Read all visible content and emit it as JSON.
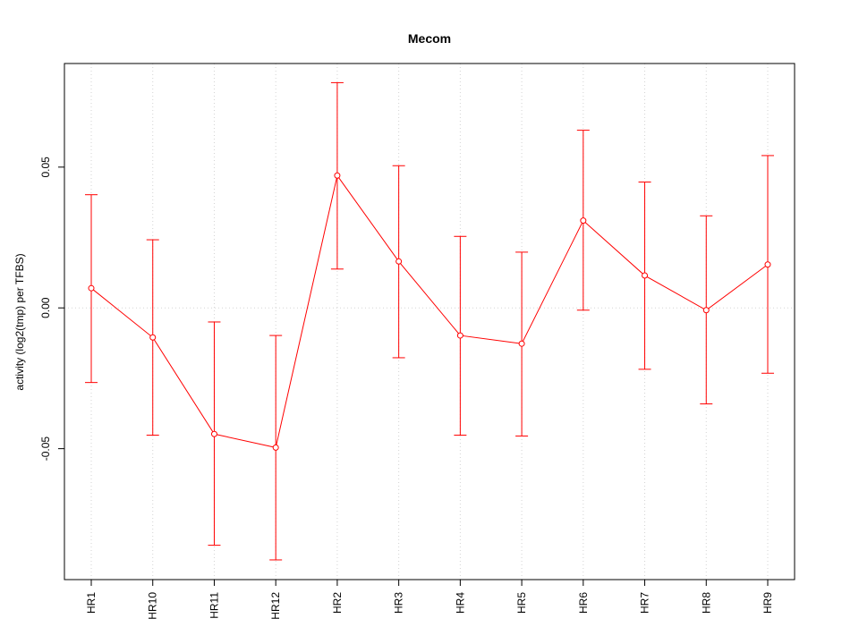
{
  "chart_data": {
    "type": "line",
    "title": "Mecom",
    "xlabel": "",
    "ylabel": "activity (log2(tmp) per TFBS)",
    "categories": [
      "HR1",
      "HR10",
      "HR11",
      "HR12",
      "HR2",
      "HR3",
      "HR4",
      "HR5",
      "HR6",
      "HR7",
      "HR8",
      "HR9"
    ],
    "series": [
      {
        "values": [
          0.007,
          -0.0105,
          -0.0448,
          -0.0496,
          0.047,
          0.0165,
          -0.0098,
          -0.0127,
          0.031,
          0.0115,
          -0.0008,
          0.0154
        ],
        "lower": [
          -0.0265,
          -0.0452,
          -0.0843,
          -0.0895,
          0.0138,
          -0.0177,
          -0.0452,
          -0.0455,
          -0.0008,
          -0.0218,
          -0.0341,
          -0.0232
        ],
        "upper": [
          0.0402,
          0.0242,
          -0.005,
          -0.0098,
          0.08,
          0.0505,
          0.0254,
          0.0198,
          0.0631,
          0.0447,
          0.0327,
          0.0541
        ],
        "color": "#ff0000"
      }
    ],
    "yticks": [
      -0.05,
      0.0,
      0.05
    ],
    "ytick_labels": [
      "-0.05",
      "0.00",
      "0.05"
    ],
    "ylim": [
      -0.0965,
      0.0868
    ],
    "grid": true,
    "grid_color": "#d3d3d3",
    "frame_color": "#000000"
  }
}
